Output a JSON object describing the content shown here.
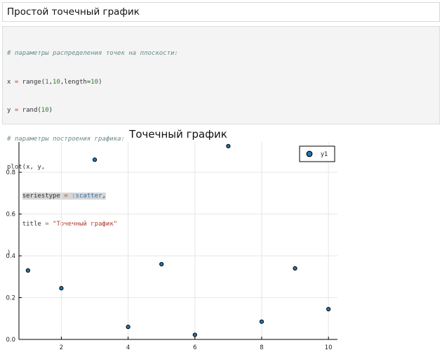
{
  "markdown_cell": {
    "title": "Простой точечный график"
  },
  "code_cell": {
    "comment1": "# параметры распределения точек на плоскости:",
    "line2": {
      "prefix": "x ",
      "eq": "=",
      "mid": " range(",
      "n1": "1",
      "c1": ",",
      "n2": "10",
      "c2": ",length=",
      "n3": "10",
      "end": ")"
    },
    "line3": {
      "prefix": "y ",
      "eq": "=",
      "mid": " rand(",
      "n1": "10",
      "end": ")"
    },
    "comment2": "# параметры построения графика:",
    "line5": "plot(x, y,",
    "line6": {
      "a": "seriestype ",
      "eq": "=",
      "b": " ",
      "sym": ":scatter",
      "c": ","
    },
    "line7": {
      "a": "title ",
      "eq": "=",
      "b": " ",
      "str": "\"Точечный график\""
    },
    "line8": ")"
  },
  "chart_data": {
    "type": "scatter",
    "title": "Точечный график",
    "xlabel": "",
    "ylabel": "",
    "x": [
      1,
      2,
      3,
      4,
      5,
      6,
      7,
      8,
      9,
      10
    ],
    "series": [
      {
        "name": "y1",
        "values": [
          0.33,
          0.245,
          0.86,
          0.06,
          0.36,
          0.022,
          0.925,
          0.085,
          0.34,
          0.145
        ]
      }
    ],
    "xlim": [
      0.73,
      10.27
    ],
    "ylim": [
      0,
      0.945
    ],
    "xticks": [
      2,
      4,
      6,
      8,
      10
    ],
    "yticks": [
      0.0,
      0.2,
      0.4,
      0.6,
      0.8
    ],
    "ytick_labels": [
      "0.0",
      "0.2",
      "0.4",
      "0.6",
      "0.8"
    ],
    "grid": true,
    "legend_position": "top-right",
    "colors": {
      "marker_fill": "#1f77b4",
      "marker_stroke": "#000000",
      "grid": "#e6e6e6"
    }
  }
}
